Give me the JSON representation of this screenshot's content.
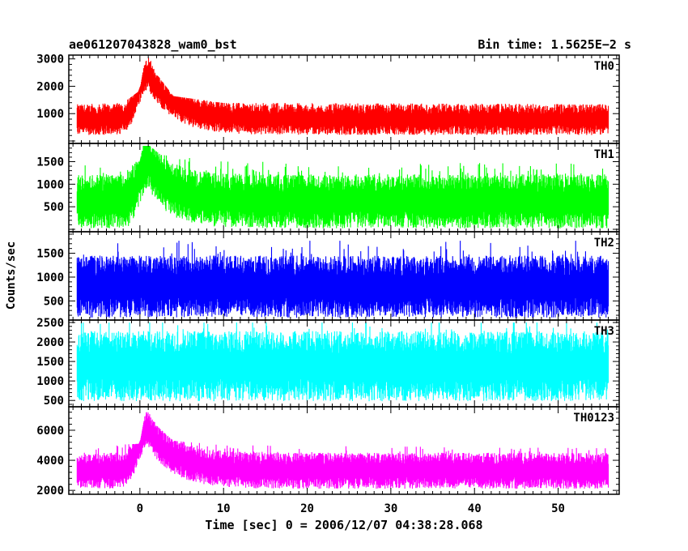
{
  "chart_data": {
    "type": "line",
    "title": "ae061207043828_wam0_bst",
    "subtitle": "Bin time: 1.5625E−2 s",
    "xlabel": "Time [sec] 0 = 2006/12/07 04:38:28.068",
    "ylabel": "Counts/sec",
    "xlim": [
      -8.5,
      57.3
    ],
    "data_range_x": [
      -7.5,
      56.0
    ],
    "x_ticks": [
      0,
      10,
      20,
      30,
      40,
      50
    ],
    "grid": false,
    "panels": [
      {
        "name": "TH0",
        "color": "#ff0000",
        "ylim": [
          0,
          3050
        ],
        "y_ticks": [
          1000,
          2000,
          3000
        ],
        "baseline_mean": 780,
        "noise_spread": 560,
        "burst": {
          "peak_x": 1.0,
          "peak_y": 3000,
          "rise": 1.2,
          "decay": 3.0
        },
        "envelope_x": [
          -7.5,
          -2,
          0,
          0.7,
          1.0,
          2.0,
          4.0,
          10,
          56.0
        ],
        "envelope_y": [
          1200,
          1250,
          1700,
          3000,
          3000,
          2300,
          1500,
          1250,
          1200
        ]
      },
      {
        "name": "TH1",
        "color": "#00ff00",
        "ylim": [
          0,
          1850
        ],
        "y_ticks": [
          500,
          1000,
          1500
        ],
        "baseline_mean": 620,
        "noise_spread": 600,
        "burst": {
          "peak_x": 1.0,
          "peak_y": 1800,
          "rise": 1.0,
          "decay": 2.5
        },
        "envelope_x": [
          -7.5,
          0,
          0.5,
          2.5,
          10,
          56.0
        ],
        "envelope_y": [
          1300,
          1350,
          1800,
          1500,
          1350,
          1300
        ]
      },
      {
        "name": "TH2",
        "color": "#0000ff",
        "ylim": [
          150,
          1900
        ],
        "y_ticks": [
          500,
          1000,
          1500
        ],
        "baseline_mean": 800,
        "noise_spread": 650,
        "burst": null,
        "envelope_x": [
          -7.5,
          56.0
        ],
        "envelope_y": [
          1600,
          1600
        ]
      },
      {
        "name": "TH3",
        "color": "#00ffff",
        "ylim": [
          400,
          2500
        ],
        "y_ticks": [
          500,
          1000,
          1500,
          2000,
          2500
        ],
        "baseline_mean": 1380,
        "noise_spread": 900,
        "burst": null,
        "envelope_x": [
          -7.5,
          56.0
        ],
        "envelope_y": [
          2350,
          2350
        ]
      },
      {
        "name": "TH0123",
        "color": "#ff00ff",
        "ylim": [
          1900,
          7400
        ],
        "y_ticks": [
          2000,
          4000,
          6000
        ],
        "baseline_mean": 3300,
        "noise_spread": 1200,
        "burst": {
          "peak_x": 1.0,
          "peak_y": 7000,
          "rise": 1.2,
          "decay": 3.0
        },
        "envelope_x": [
          -7.5,
          0,
          0.7,
          1.0,
          2.0,
          4.0,
          10,
          56.0
        ],
        "envelope_y": [
          4600,
          4800,
          7000,
          7000,
          6000,
          5000,
          4700,
          4500
        ]
      }
    ]
  }
}
